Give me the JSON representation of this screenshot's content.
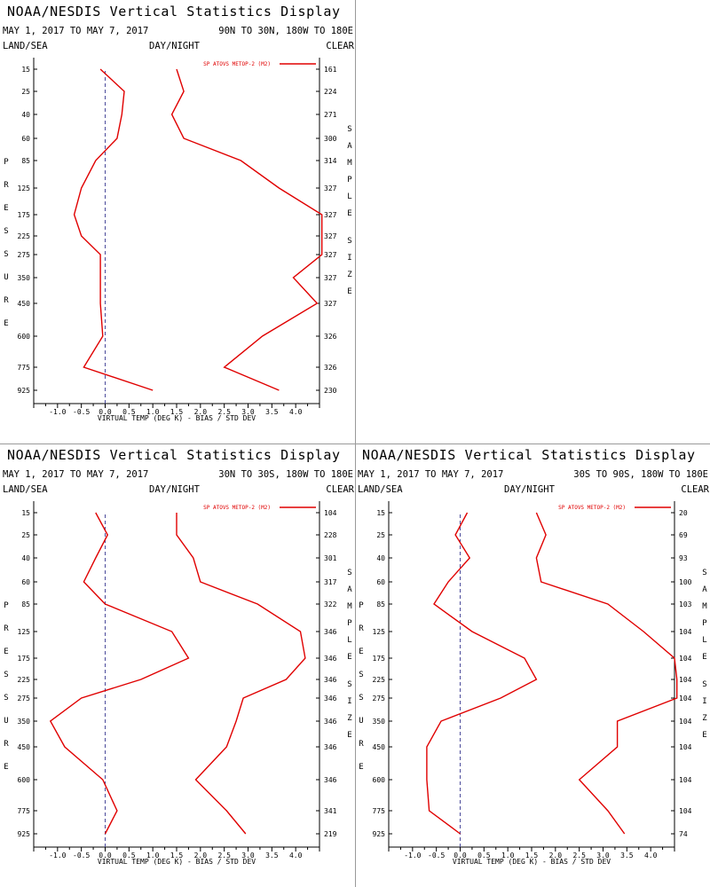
{
  "page": {
    "title": "NOAA/NESDIS Vertical Statistics Display",
    "land_sea": "LAND/SEA",
    "day_night": "DAY/NIGHT",
    "clear": "CLEAR"
  },
  "colors": {
    "series": "#e00000",
    "zero_line": "#4a4a9a"
  },
  "chart_data": [
    {
      "type": "line",
      "date_range": "MAY 1, 2017 TO MAY 7, 2017",
      "region": "90N TO 30N, 180W TO 180E",
      "legend": "SP ATOVS METOP-2 (M2)",
      "legend_position": "top-right",
      "xlabel": "VIRTUAL TEMP (DEG K) - BIAS / STD DEV",
      "ylabel": "PRESSURE",
      "right_label": "SAMPLE SIZE",
      "xlim": [
        -1.5,
        4.5
      ],
      "xticks": [
        "-1.0",
        "-0.5",
        "0.0",
        "0.5",
        "1.0",
        "1.5",
        "2.0",
        "2.5",
        "3.0",
        "3.5",
        "4.0"
      ],
      "pressure_levels": [
        "15",
        "25",
        "40",
        "60",
        "85",
        "125",
        "175",
        "225",
        "275",
        "350",
        "450",
        "600",
        "775",
        "925"
      ],
      "sample_size": [
        "161",
        "224",
        "271",
        "300",
        "314",
        "327",
        "327",
        "327",
        "327",
        "327",
        "327",
        "326",
        "326",
        "230"
      ],
      "series": [
        {
          "name": "BIAS",
          "values": [
            -0.1,
            0.4,
            0.35,
            0.25,
            -0.2,
            -0.5,
            -0.65,
            -0.5,
            -0.1,
            -0.1,
            -0.1,
            -0.05,
            -0.45,
            1.0
          ]
        },
        {
          "name": "STD DEV",
          "values": [
            1.5,
            1.65,
            1.4,
            1.65,
            2.85,
            3.65,
            4.55,
            4.55,
            4.55,
            3.95,
            4.45,
            3.3,
            2.5,
            3.65
          ]
        }
      ]
    },
    {
      "type": "line",
      "date_range": "MAY 1, 2017 TO MAY 7, 2017",
      "region": "30N TO 30S, 180W TO 180E",
      "legend": "SP ATOVS METOP-2 (M2)",
      "legend_position": "top-right",
      "xlabel": "VIRTUAL TEMP (DEG K) - BIAS / STD DEV",
      "ylabel": "PRESSURE",
      "right_label": "SAMPLE SIZE",
      "xlim": [
        -1.5,
        4.5
      ],
      "xticks": [
        "-1.0",
        "-0.5",
        "0.0",
        "0.5",
        "1.0",
        "1.5",
        "2.0",
        "2.5",
        "3.0",
        "3.5",
        "4.0"
      ],
      "pressure_levels": [
        "15",
        "25",
        "40",
        "60",
        "85",
        "125",
        "175",
        "225",
        "275",
        "350",
        "450",
        "600",
        "775",
        "925"
      ],
      "sample_size": [
        "104",
        "228",
        "301",
        "317",
        "322",
        "346",
        "346",
        "346",
        "346",
        "346",
        "346",
        "346",
        "341",
        "219"
      ],
      "series": [
        {
          "name": "BIAS",
          "values": [
            -0.2,
            0.05,
            -0.2,
            -0.45,
            0.0,
            1.4,
            1.75,
            0.75,
            -0.5,
            -1.15,
            -0.85,
            -0.05,
            0.25,
            0.0
          ]
        },
        {
          "name": "STD DEV",
          "values": [
            1.5,
            1.5,
            1.85,
            2.0,
            3.2,
            4.1,
            4.2,
            3.8,
            2.9,
            2.75,
            2.55,
            1.9,
            2.55,
            2.95
          ]
        }
      ]
    },
    {
      "type": "line",
      "date_range": "MAY 1, 2017 TO MAY 7, 2017",
      "region": "30S TO 90S, 180W TO 180E",
      "legend": "SP ATOVS METOP-2 (M2)",
      "legend_position": "top-right",
      "xlabel": "VIRTUAL TEMP (DEG K) - BIAS / STD DEV",
      "ylabel": "PRESSURE",
      "right_label": "SAMPLE SIZE",
      "xlim": [
        -1.5,
        4.5
      ],
      "xticks": [
        "-1.0",
        "-0.5",
        "0.0",
        "0.5",
        "1.0",
        "1.5",
        "2.0",
        "2.5",
        "3.0",
        "3.5",
        "4.0"
      ],
      "pressure_levels": [
        "15",
        "25",
        "40",
        "60",
        "85",
        "125",
        "175",
        "225",
        "275",
        "350",
        "450",
        "600",
        "775",
        "925"
      ],
      "sample_size": [
        "20",
        "69",
        "93",
        "100",
        "103",
        "104",
        "104",
        "104",
        "104",
        "104",
        "104",
        "104",
        "104",
        "74"
      ],
      "series": [
        {
          "name": "BIAS",
          "values": [
            0.15,
            -0.1,
            0.2,
            -0.25,
            -0.55,
            0.25,
            1.35,
            1.6,
            0.85,
            -0.4,
            -0.7,
            -0.7,
            -0.65,
            0.0
          ]
        },
        {
          "name": "STD DEV",
          "values": [
            1.6,
            1.8,
            1.6,
            1.7,
            3.1,
            3.85,
            4.5,
            4.55,
            4.55,
            3.3,
            3.3,
            2.5,
            3.1,
            3.45
          ]
        }
      ]
    }
  ]
}
